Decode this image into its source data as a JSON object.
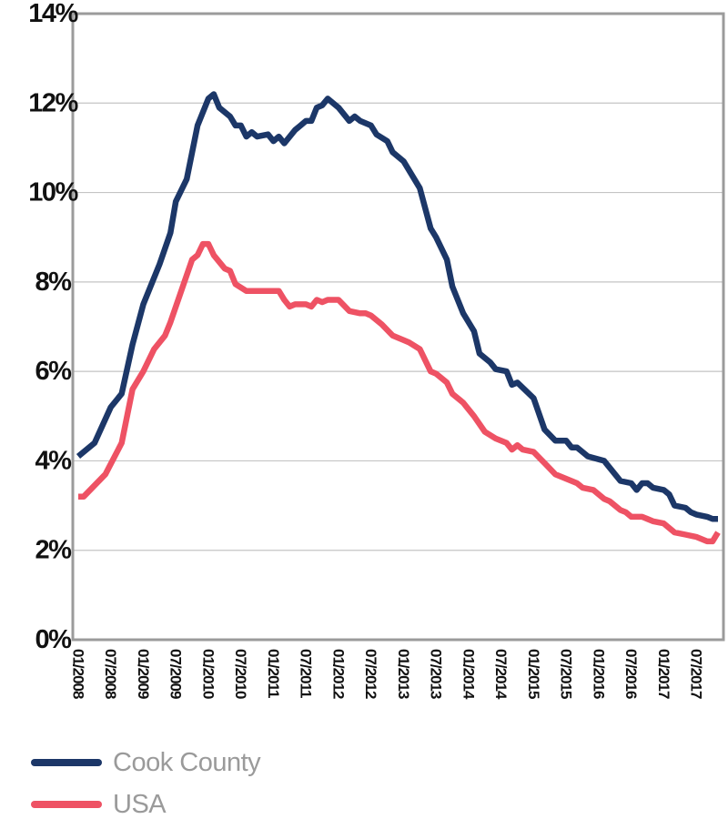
{
  "chart_data": {
    "type": "line",
    "title": "",
    "xlabel": "",
    "ylabel": "",
    "ylim": [
      0,
      14
    ],
    "yticks": [
      0,
      2,
      4,
      6,
      8,
      10,
      12,
      14
    ],
    "ytick_labels": [
      "0%",
      "2%",
      "4%",
      "6%",
      "8%",
      "10%",
      "12%",
      "14%"
    ],
    "x_range": [
      "2008-01",
      "2017-11"
    ],
    "xticks": [
      "2008-01",
      "2008-07",
      "2009-01",
      "2009-07",
      "2010-01",
      "2010-07",
      "2011-01",
      "2011-07",
      "2012-01",
      "2012-07",
      "2013-01",
      "2013-07",
      "2014-01",
      "2014-07",
      "2015-01",
      "2015-07",
      "2016-01",
      "2016-07",
      "2017-01",
      "2017-07"
    ],
    "xtick_labels": [
      "01/2008",
      "07/2008",
      "01/2009",
      "07/2009",
      "01/2010",
      "07/2010",
      "01/2011",
      "07/2011",
      "01/2012",
      "07/2012",
      "01/2013",
      "07/2013",
      "01/2014",
      "07/2014",
      "01/2015",
      "07/2015",
      "01/2016",
      "07/2016",
      "01/2017",
      "07/2017"
    ],
    "grid": "horizontal",
    "legend_position": "bottom-left",
    "series": [
      {
        "name": "Cook County",
        "color": "#1c3768",
        "points": [
          [
            "2008-01",
            4.1
          ],
          [
            "2008-04",
            4.4
          ],
          [
            "2008-07",
            5.2
          ],
          [
            "2008-09",
            5.5
          ],
          [
            "2008-11",
            6.6
          ],
          [
            "2009-01",
            7.5
          ],
          [
            "2009-04",
            8.4
          ],
          [
            "2009-06",
            9.1
          ],
          [
            "2009-07",
            9.8
          ],
          [
            "2009-09",
            10.3
          ],
          [
            "2009-11",
            11.5
          ],
          [
            "2010-01",
            12.1
          ],
          [
            "2010-02",
            12.2
          ],
          [
            "2010-03",
            11.9
          ],
          [
            "2010-05",
            11.7
          ],
          [
            "2010-06",
            11.5
          ],
          [
            "2010-07",
            11.5
          ],
          [
            "2010-08",
            11.25
          ],
          [
            "2010-09",
            11.35
          ],
          [
            "2010-10",
            11.25
          ],
          [
            "2010-12",
            11.3
          ],
          [
            "2011-01",
            11.15
          ],
          [
            "2011-02",
            11.25
          ],
          [
            "2011-03",
            11.1
          ],
          [
            "2011-05",
            11.4
          ],
          [
            "2011-06",
            11.5
          ],
          [
            "2011-07",
            11.6
          ],
          [
            "2011-08",
            11.6
          ],
          [
            "2011-09",
            11.9
          ],
          [
            "2011-10",
            11.95
          ],
          [
            "2011-11",
            12.1
          ],
          [
            "2012-01",
            11.9
          ],
          [
            "2012-03",
            11.6
          ],
          [
            "2012-04",
            11.7
          ],
          [
            "2012-05",
            11.6
          ],
          [
            "2012-07",
            11.5
          ],
          [
            "2012-08",
            11.3
          ],
          [
            "2012-10",
            11.15
          ],
          [
            "2012-11",
            10.9
          ],
          [
            "2013-01",
            10.7
          ],
          [
            "2013-04",
            10.1
          ],
          [
            "2013-06",
            9.2
          ],
          [
            "2013-07",
            9.0
          ],
          [
            "2013-09",
            8.5
          ],
          [
            "2013-10",
            7.9
          ],
          [
            "2013-12",
            7.3
          ],
          [
            "2014-02",
            6.9
          ],
          [
            "2014-03",
            6.4
          ],
          [
            "2014-05",
            6.2
          ],
          [
            "2014-06",
            6.05
          ],
          [
            "2014-08",
            6.0
          ],
          [
            "2014-09",
            5.7
          ],
          [
            "2014-10",
            5.75
          ],
          [
            "2015-01",
            5.4
          ],
          [
            "2015-03",
            4.7
          ],
          [
            "2015-05",
            4.45
          ],
          [
            "2015-07",
            4.45
          ],
          [
            "2015-08",
            4.3
          ],
          [
            "2015-09",
            4.3
          ],
          [
            "2015-11",
            4.1
          ],
          [
            "2016-02",
            4.0
          ],
          [
            "2016-05",
            3.55
          ],
          [
            "2016-07",
            3.5
          ],
          [
            "2016-08",
            3.35
          ],
          [
            "2016-09",
            3.5
          ],
          [
            "2016-10",
            3.5
          ],
          [
            "2016-11",
            3.4
          ],
          [
            "2017-01",
            3.35
          ],
          [
            "2017-02",
            3.25
          ],
          [
            "2017-03",
            3.0
          ],
          [
            "2017-05",
            2.95
          ],
          [
            "2017-06",
            2.85
          ],
          [
            "2017-07",
            2.8
          ],
          [
            "2017-09",
            2.75
          ],
          [
            "2017-10",
            2.7
          ],
          [
            "2017-11",
            2.7
          ]
        ]
      },
      {
        "name": "USA",
        "color": "#ee5264",
        "points": [
          [
            "2008-01",
            3.2
          ],
          [
            "2008-02",
            3.2
          ],
          [
            "2008-06",
            3.7
          ],
          [
            "2008-09",
            4.4
          ],
          [
            "2008-11",
            5.6
          ],
          [
            "2009-01",
            6.0
          ],
          [
            "2009-03",
            6.5
          ],
          [
            "2009-05",
            6.8
          ],
          [
            "2009-06",
            7.1
          ],
          [
            "2009-08",
            7.8
          ],
          [
            "2009-10",
            8.5
          ],
          [
            "2009-11",
            8.6
          ],
          [
            "2009-12",
            8.85
          ],
          [
            "2010-01",
            8.85
          ],
          [
            "2010-02",
            8.6
          ],
          [
            "2010-04",
            8.3
          ],
          [
            "2010-05",
            8.25
          ],
          [
            "2010-06",
            7.95
          ],
          [
            "2010-08",
            7.8
          ],
          [
            "2010-10",
            7.8
          ],
          [
            "2011-01",
            7.8
          ],
          [
            "2011-02",
            7.8
          ],
          [
            "2011-03",
            7.6
          ],
          [
            "2011-04",
            7.45
          ],
          [
            "2011-05",
            7.5
          ],
          [
            "2011-07",
            7.5
          ],
          [
            "2011-08",
            7.45
          ],
          [
            "2011-09",
            7.6
          ],
          [
            "2011-10",
            7.55
          ],
          [
            "2011-11",
            7.6
          ],
          [
            "2012-01",
            7.6
          ],
          [
            "2012-03",
            7.35
          ],
          [
            "2012-05",
            7.3
          ],
          [
            "2012-06",
            7.3
          ],
          [
            "2012-07",
            7.25
          ],
          [
            "2012-09",
            7.05
          ],
          [
            "2012-11",
            6.8
          ],
          [
            "2013-01",
            6.7
          ],
          [
            "2013-02",
            6.65
          ],
          [
            "2013-04",
            6.5
          ],
          [
            "2013-06",
            6.0
          ],
          [
            "2013-07",
            5.95
          ],
          [
            "2013-09",
            5.75
          ],
          [
            "2013-10",
            5.5
          ],
          [
            "2013-12",
            5.3
          ],
          [
            "2014-02",
            5.0
          ],
          [
            "2014-04",
            4.65
          ],
          [
            "2014-06",
            4.5
          ],
          [
            "2014-08",
            4.4
          ],
          [
            "2014-09",
            4.25
          ],
          [
            "2014-10",
            4.35
          ],
          [
            "2014-11",
            4.25
          ],
          [
            "2015-01",
            4.2
          ],
          [
            "2015-03",
            3.95
          ],
          [
            "2015-05",
            3.7
          ],
          [
            "2015-07",
            3.6
          ],
          [
            "2015-09",
            3.5
          ],
          [
            "2015-10",
            3.4
          ],
          [
            "2015-12",
            3.35
          ],
          [
            "2016-02",
            3.15
          ],
          [
            "2016-03",
            3.1
          ],
          [
            "2016-05",
            2.9
          ],
          [
            "2016-06",
            2.85
          ],
          [
            "2016-07",
            2.75
          ],
          [
            "2016-09",
            2.75
          ],
          [
            "2016-10",
            2.7
          ],
          [
            "2016-11",
            2.65
          ],
          [
            "2017-01",
            2.6
          ],
          [
            "2017-03",
            2.4
          ],
          [
            "2017-05",
            2.35
          ],
          [
            "2017-07",
            2.3
          ],
          [
            "2017-09",
            2.2
          ],
          [
            "2017-10",
            2.2
          ],
          [
            "2017-11",
            2.4
          ]
        ]
      }
    ]
  }
}
